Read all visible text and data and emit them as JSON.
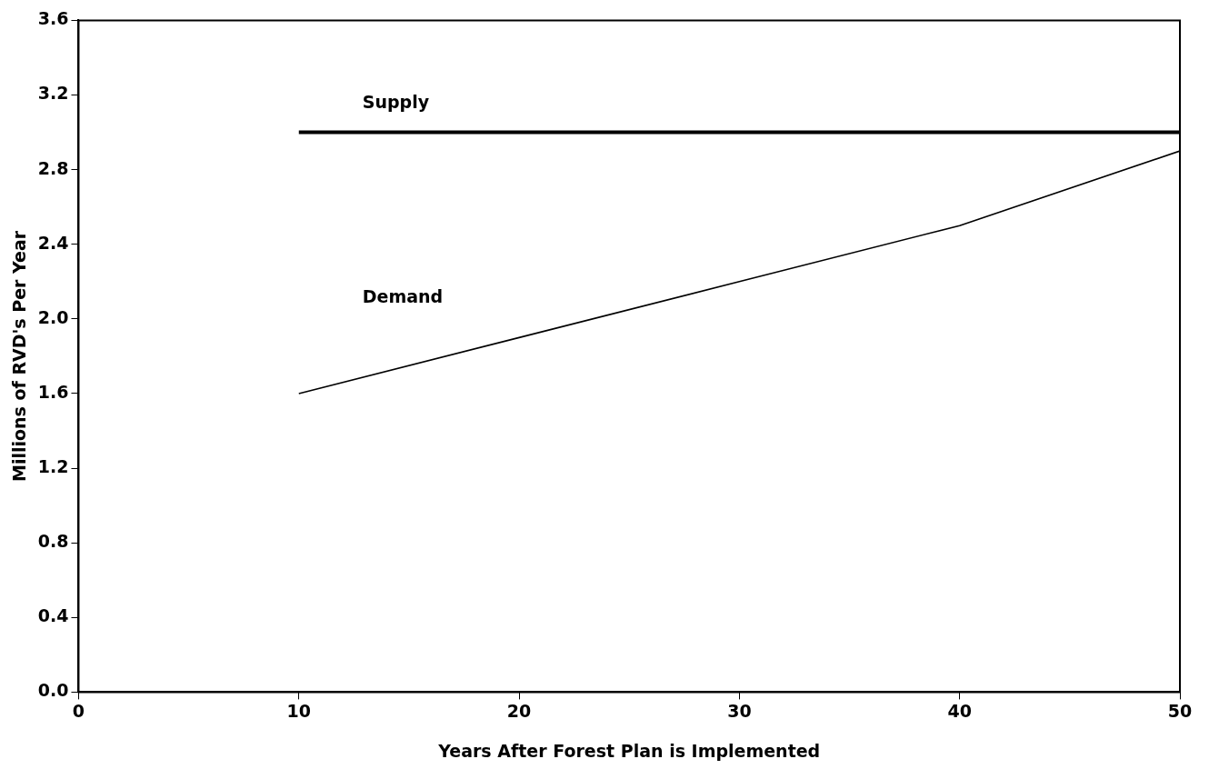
{
  "chart_data": {
    "type": "line",
    "xlabel": "Years After Forest Plan is Implemented",
    "ylabel": "Millions of RVD's Per Year",
    "xlim": [
      0,
      50
    ],
    "xticks": [
      0,
      10,
      20,
      30,
      40,
      50
    ],
    "ylim": [
      0,
      3.6
    ],
    "yticks": [
      {
        "value": 0,
        "label": "0.0"
      },
      {
        "value": 0.4,
        "label": "0.4"
      },
      {
        "value": 0.8,
        "label": "0.8"
      },
      {
        "value": 1.2,
        "label": "1.2"
      },
      {
        "value": 1.6,
        "label": "1.6"
      },
      {
        "value": 2,
        "label": "2.0"
      },
      {
        "value": 2.4,
        "label": "2.4"
      },
      {
        "value": 2.8,
        "label": "2.8"
      },
      {
        "value": 3.2,
        "label": "3.2"
      },
      {
        "value": 3.6,
        "label": "3.6"
      }
    ],
    "grid": false,
    "legend": false,
    "marker": "none",
    "line_style": "solid",
    "series": [
      {
        "name": "Supply",
        "color": "#000000",
        "x": [
          10,
          50
        ],
        "values": [
          3.0,
          3.0
        ]
      },
      {
        "name": "Demand",
        "color": "#000000",
        "x": [
          10,
          20,
          30,
          40,
          50
        ],
        "values": [
          1.6,
          1.9,
          2.2,
          2.5,
          2.9
        ]
      }
    ]
  }
}
